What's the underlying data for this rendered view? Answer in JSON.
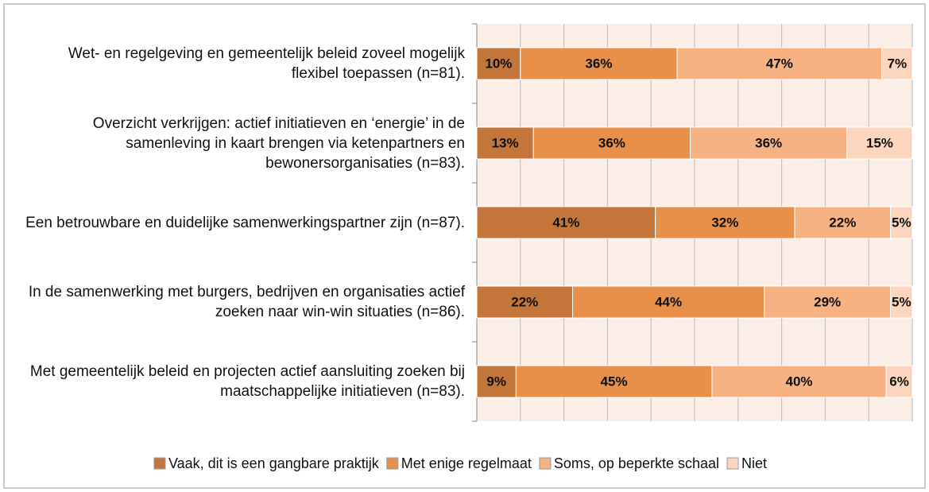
{
  "chart_data": {
    "type": "stacked_bar_horizontal",
    "categories": [
      "Wet- en regelgeving en gemeentelijk beleid zoveel mogelijk flexibel toepassen (n=81).",
      "Overzicht verkrijgen: actief initiatieven en ‘energie’ in de samenleving in kaart brengen via ketenpartners en bewonersorganisaties (n=83).",
      "Een betrouwbare en duidelijke samenwerkingspartner zijn (n=87).",
      "In de samenwerking met burgers, bedrijven en organisaties actief zoeken naar win-win situaties (n=86).",
      "Met gemeentelijk beleid en projecten actief aansluiting zoeken bij maatschappelijke initiatieven (n=83)."
    ],
    "series": [
      {
        "name": "Vaak, dit is een gangbare praktijk",
        "color": "#c4763a",
        "values": [
          10,
          13,
          41,
          22,
          9
        ],
        "value_labels": [
          "10%",
          "13%",
          "41%",
          "22%",
          "9%"
        ]
      },
      {
        "name": "Met enige regelmaat",
        "color": "#e8904a",
        "values": [
          36,
          36,
          32,
          44,
          45
        ],
        "value_labels": [
          "36%",
          "36%",
          "32%",
          "44%",
          "45%"
        ]
      },
      {
        "name": "Soms, op beperkte schaal",
        "color": "#f7b283",
        "values": [
          47,
          36,
          22,
          29,
          40
        ],
        "value_labels": [
          "47%",
          "36%",
          "22%",
          "29%",
          "40%"
        ]
      },
      {
        "name": "Niet",
        "color": "#fbd5bd",
        "values": [
          7,
          15,
          5,
          5,
          6
        ],
        "value_labels": [
          "7%",
          "15%",
          "5%",
          "5%",
          "6%"
        ]
      }
    ],
    "xlim": [
      0,
      100
    ],
    "xticks": [
      0,
      10,
      20,
      30,
      40,
      50,
      60,
      70,
      80,
      90,
      100
    ],
    "grid": true,
    "legend": "bottom"
  }
}
